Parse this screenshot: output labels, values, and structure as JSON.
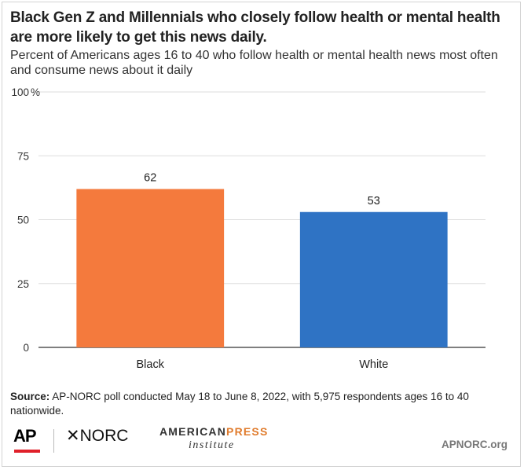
{
  "chart_data": {
    "type": "bar",
    "title": "Black Gen Z and Millennials who closely follow health or mental health are more likely to get this news daily.",
    "subtitle": "Percent of Americans ages 16 to 40 who follow health or mental health news most often and consume news about it daily",
    "categories": [
      "Black",
      "White"
    ],
    "values": [
      62,
      53
    ],
    "colors": [
      "#f47a3d",
      "#2f73c4"
    ],
    "ylim": [
      0,
      100
    ],
    "yticks": [
      0,
      25,
      50,
      75,
      100
    ],
    "ytick_labels": [
      "0",
      "25",
      "50",
      "75",
      "100"
    ],
    "ytick_suffix": "%",
    "grid": true,
    "xlabel": "",
    "ylabel": ""
  },
  "footer": {
    "source_label": "Source:",
    "source_text": " AP-NORC poll conducted May 18 to June 8, 2022, with 5,975 respondents ages 16 to 40 nationwide.",
    "logo_ap": "AP",
    "logo_norc": "✕NORC",
    "logo_api_part1": "AMERICAN",
    "logo_api_part2": "PRESS",
    "logo_api_part3": "institute",
    "site": "APNORC.org"
  }
}
